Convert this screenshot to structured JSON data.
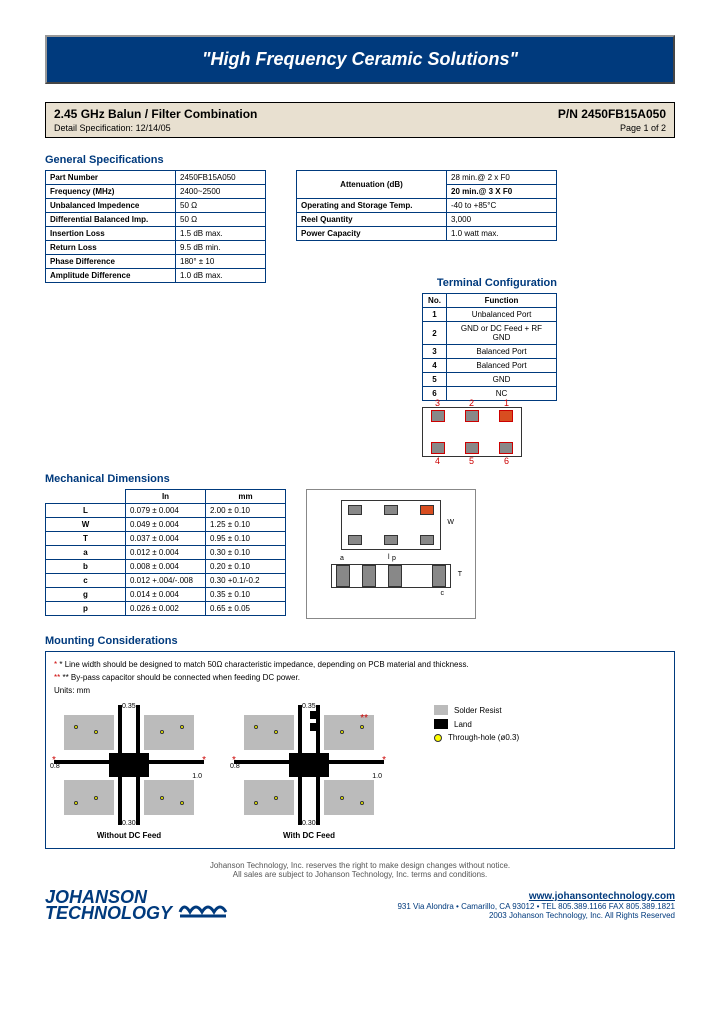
{
  "banner": "\"High Frequency Ceramic Solutions\"",
  "title": {
    "main": "2.45 GHz Balun / Filter Combination",
    "pn": "P/N 2450FB15A050",
    "detail": "Detail Specification:",
    "date": "12/14/05",
    "page": "Page 1 of 2"
  },
  "specs_title": "General Specifications",
  "specs_left": [
    [
      "Part Number",
      "2450FB15A050"
    ],
    [
      "Frequency (MHz)",
      "2400~2500"
    ],
    [
      "Unbalanced Impedence",
      "50 Ω"
    ],
    [
      "Differential Balanced Imp.",
      "50 Ω"
    ],
    [
      "Insertion Loss",
      "1.5 dB max."
    ],
    [
      "Return Loss",
      "9.5 dB min."
    ],
    [
      "Phase Difference",
      "180° ± 10"
    ],
    [
      "Amplitude Difference",
      "1.0 dB max."
    ]
  ],
  "specs_right": [
    [
      "Attenuation (dB)",
      "28 min.@ 2 x F0"
    ],
    [
      "",
      "20 min.@ 3 X F0"
    ],
    [
      "Operating and Storage Temp.",
      "-40 to +85°C"
    ],
    [
      "Reel Quantity",
      "3,000"
    ],
    [
      "Power Capacity",
      "1.0 watt max."
    ]
  ],
  "mech_title": "Mechanical Dimensions",
  "mech_headers": [
    "In",
    "mm"
  ],
  "mech_rows": [
    [
      "L",
      "0.079 ± 0.004",
      "2.00 ± 0.10"
    ],
    [
      "W",
      "0.049 ± 0.004",
      "1.25 ± 0.10"
    ],
    [
      "T",
      "0.037 ± 0.004",
      "0.95 ± 0.10"
    ],
    [
      "a",
      "0.012 ± 0.004",
      "0.30 ± 0.10"
    ],
    [
      "b",
      "0.008 ± 0.004",
      "0.20 ± 0.10"
    ],
    [
      "c",
      "0.012 +.004/-.008",
      "0.30 +0.1/-0.2"
    ],
    [
      "g",
      "0.014 ± 0.004",
      "0.35 ± 0.10"
    ],
    [
      "p",
      "0.026 ± 0.002",
      "0.65 ± 0.05"
    ]
  ],
  "term_title": "Terminal Configuration",
  "term_headers": [
    "No.",
    "Function"
  ],
  "term_rows": [
    [
      "1",
      "Unbalanced Port"
    ],
    [
      "2",
      "GND or DC Feed + RF GND"
    ],
    [
      "3",
      "Balanced Port"
    ],
    [
      "4",
      "Balanced Port"
    ],
    [
      "5",
      "GND"
    ],
    [
      "6",
      "NC"
    ]
  ],
  "mount_title": "Mounting Considerations",
  "mount_notes": [
    "* Line width should be designed to match 50Ω characteristic impedance, depending on PCB material and thickness.",
    "** By-pass capacitor should be connected when feeding DC power."
  ],
  "mount_units": "Units: mm",
  "mount_labels": {
    "without": "Without DC Feed",
    "with": "With DC Feed"
  },
  "mount_dims": {
    "a": "0.35",
    "b": "1.0",
    "c": "0.8",
    "d": "0.30"
  },
  "legend": {
    "solder": "Solder Resist",
    "land": "Land",
    "hole": "Through-hole (ø0.3)"
  },
  "footer": [
    "Johanson Technology, Inc. reserves the right to make design changes without notice.",
    "All sales are subject to Johanson Technology, Inc. terms and conditions."
  ],
  "logo": {
    "line1": "JOHANSON",
    "line2": "TECHNOLOGY"
  },
  "contact": {
    "web": "www.johansontechnology.com",
    "addr": "931 Via Alondra • Camarillo, CA 93012 • TEL 805.389.1166 FAX 805.389.1821",
    "copy": "2003 Johanson Technology, Inc. All Rights Reserved"
  }
}
